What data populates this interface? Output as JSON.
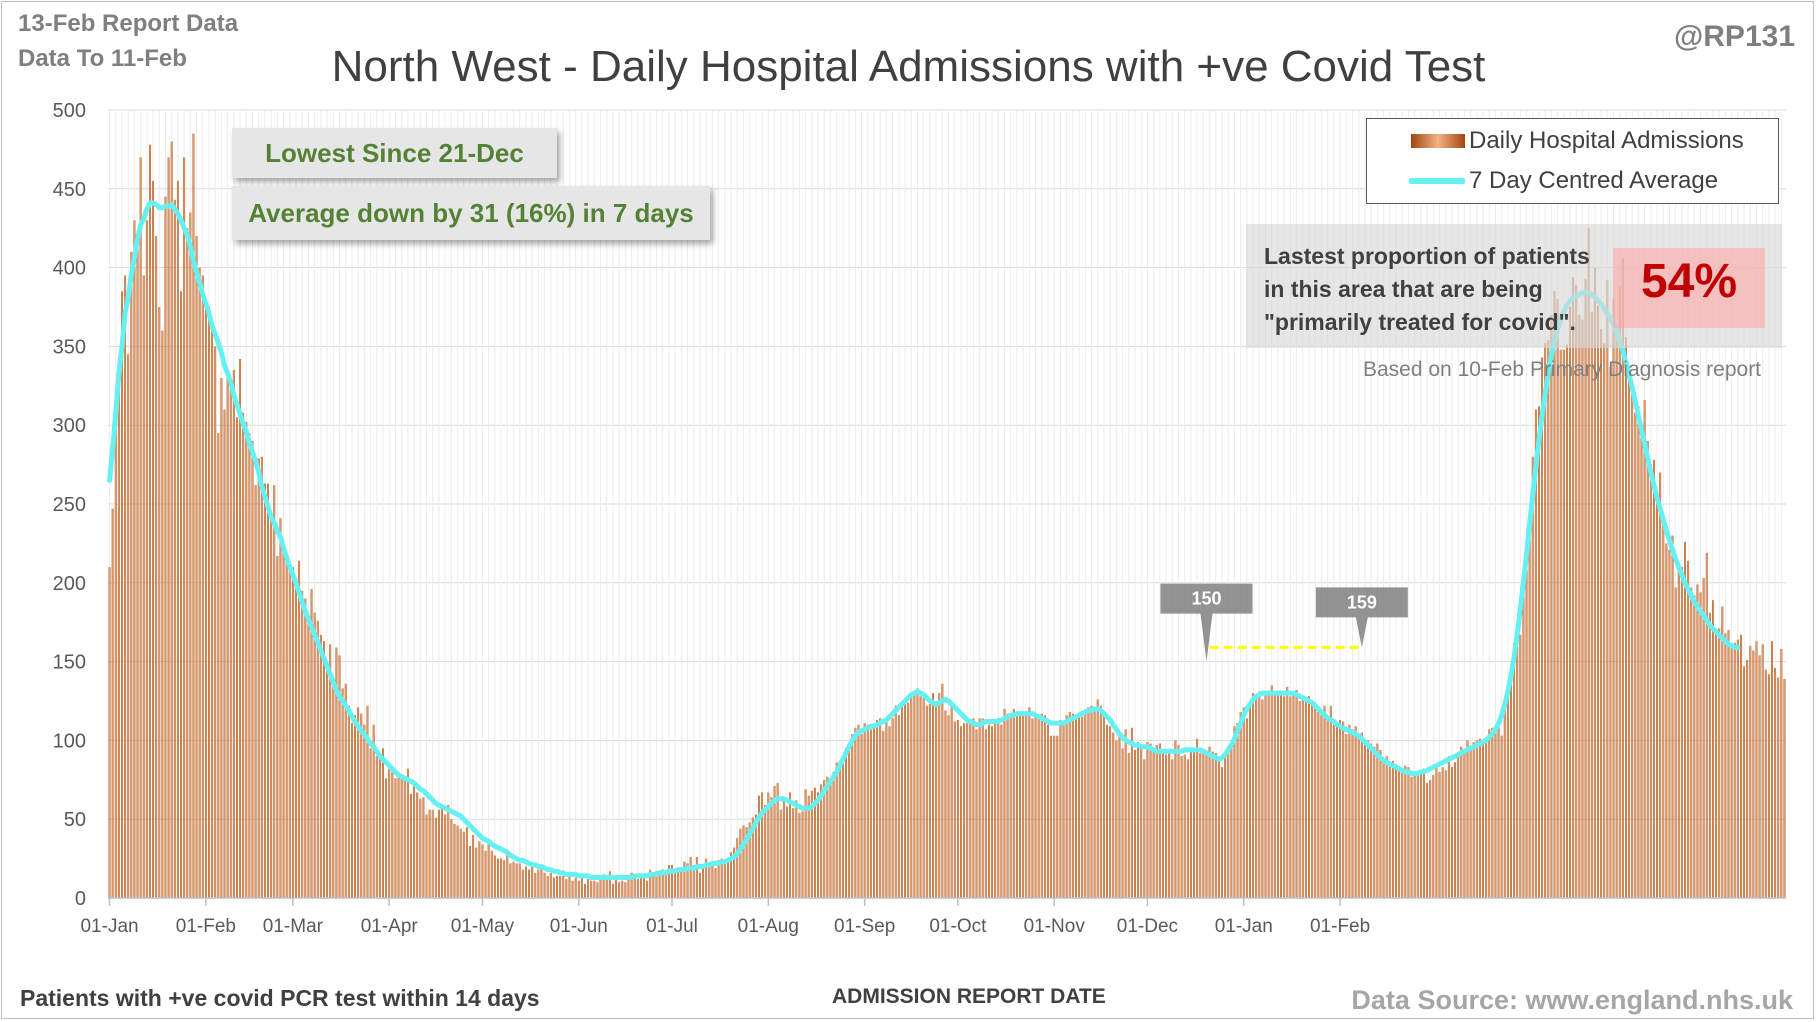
{
  "header": {
    "report_date": "13-Feb Report Data",
    "data_to": "Data To 11-Feb",
    "handle": "@RP131"
  },
  "callouts": {
    "lowest": "Lowest Since 21-Dec",
    "average": "Average down by 31 (16%) in 7 days"
  },
  "proportion": {
    "line1": "Lastest proportion of patients",
    "line2": "in this area that are being",
    "line3": "\"primarily treated for covid\".",
    "value": "54%",
    "note": "Based on 10-Feb Primary Diagnosis report"
  },
  "footer": {
    "note": "Patients with +ve covid PCR test within 14 days",
    "source": "Data Source: www.england.nhs.uk"
  },
  "colors": {
    "bar_dark": "#a0470f",
    "bar_light": "#f4b183",
    "average_line": "#66f0f2",
    "reference_line": "#ffff00",
    "callout_text": "#548235",
    "proportion_value": "#c00000"
  },
  "chart_data": {
    "type": "bar",
    "title": "North West - Daily Hospital Admissions with +ve Covid Test",
    "xlabel": "ADMISSION REPORT DATE",
    "ylabel": "",
    "ylim": [
      0,
      500
    ],
    "yticks": [
      0,
      50,
      100,
      150,
      200,
      250,
      300,
      350,
      400,
      450,
      500
    ],
    "grid": true,
    "legend_position": "top-right",
    "x_start": "01-Jan",
    "x_end": "11-Feb",
    "xtick_labels": [
      "01-Jan",
      "01-Feb",
      "01-Mar",
      "01-Apr",
      "01-May",
      "01-Jun",
      "01-Jul",
      "01-Aug",
      "01-Sep",
      "01-Oct",
      "01-Nov",
      "01-Dec",
      "01-Jan",
      "01-Feb"
    ],
    "series": [
      {
        "name": "Daily Hospital Admissions",
        "kind": "bar",
        "values": [
          210,
          247,
          300,
          325,
          385,
          395,
          345,
          410,
          430,
          420,
          470,
          395,
          430,
          478,
          455,
          420,
          375,
          360,
          445,
          470,
          480,
          443,
          455,
          385,
          470,
          425,
          435,
          485,
          420,
          400,
          395,
          380,
          375,
          360,
          350,
          295,
          330,
          310,
          335,
          325,
          335,
          305,
          342,
          308,
          302,
          295,
          290,
          262,
          279,
          280,
          263,
          263,
          241,
          262,
          217,
          241,
          224,
          218,
          211,
          210,
          203,
          214,
          195,
          190,
          177,
          196,
          181,
          176,
          167,
          163,
          149,
          161,
          135,
          159,
          154,
          133,
          136,
          122,
          111,
          116,
          121,
          117,
          110,
          122,
          95,
          110,
          90,
          90,
          95,
          76,
          82,
          80,
          76,
          79,
          78,
          76,
          82,
          66,
          71,
          67,
          63,
          64,
          53,
          56,
          56,
          51,
          56,
          58,
          53,
          59,
          50,
          47,
          46,
          44,
          42,
          45,
          33,
          40,
          32,
          36,
          34,
          30,
          34,
          30,
          27,
          25,
          25,
          24,
          28,
          22,
          23,
          22,
          22,
          18,
          20,
          18,
          21,
          16,
          18,
          19,
          16,
          14,
          16,
          13,
          14,
          14,
          14,
          12,
          14,
          11,
          13,
          11,
          13,
          9,
          12,
          11,
          11,
          10,
          12,
          15,
          13,
          17,
          9,
          13,
          10,
          11,
          10,
          12,
          16,
          13,
          12,
          15,
          14,
          11,
          18,
          15,
          17,
          17,
          18,
          17,
          21,
          21,
          18,
          17,
          19,
          23,
          22,
          26,
          21,
          26,
          16,
          20,
          25,
          22,
          23,
          19,
          24,
          25,
          23,
          25,
          29,
          32,
          38,
          44,
          46,
          45,
          48,
          51,
          53,
          65,
          67,
          59,
          67,
          64,
          71,
          73,
          56,
          63,
          58,
          67,
          57,
          62,
          54,
          55,
          69,
          65,
          68,
          70,
          67,
          72,
          75,
          77,
          73,
          80,
          86,
          87,
          87,
          95,
          98,
          104,
          108,
          110,
          104,
          111,
          110,
          107,
          109,
          113,
          114,
          106,
          112,
          109,
          114,
          122,
          116,
          124,
          125,
          124,
          129,
          129,
          133,
          128,
          127,
          122,
          123,
          130,
          125,
          130,
          136,
          119,
          116,
          124,
          112,
          113,
          109,
          111,
          111,
          112,
          114,
          107,
          114,
          114,
          107,
          110,
          109,
          113,
          114,
          110,
          120,
          117,
          115,
          120,
          116,
          117,
          116,
          116,
          121,
          114,
          115,
          114,
          117,
          116,
          110,
          103,
          103,
          103,
          113,
          110,
          116,
          118,
          117,
          115,
          115,
          115,
          118,
          121,
          122,
          120,
          126,
          122,
          117,
          110,
          109,
          105,
          100,
          106,
          95,
          107,
          92,
          108,
          94,
          99,
          95,
          88,
          99,
          98,
          93,
          97,
          98,
          94,
          91,
          92,
          88,
          100,
          97,
          90,
          91,
          88,
          93,
          95,
          101,
          92,
          93,
          93,
          96,
          93,
          92,
          89,
          83,
          92,
          94,
          97,
          109,
          111,
          118,
          121,
          114,
          121,
          130,
          128,
          131,
          126,
          130,
          129,
          135,
          131,
          129,
          130,
          128,
          134,
          128,
          130,
          132,
          125,
          127,
          127,
          128,
          124,
          123,
          120,
          118,
          122,
          115,
          122,
          110,
          110,
          113,
          112,
          104,
          110,
          107,
          109,
          103,
          105,
          98,
          100,
          98,
          96,
          98,
          94,
          88,
          90,
          86,
          87,
          85,
          82,
          81,
          84,
          83,
          77,
          79,
          80,
          79,
          82,
          73,
          75,
          78,
          83,
          80,
          83,
          81,
          90,
          83,
          86,
          92,
          96,
          93,
          100,
          94,
          99,
          100,
          101,
          100,
          102,
          107,
          108,
          109,
          109,
          103,
          123,
          130,
          142,
          162,
          160,
          167,
          205,
          226,
          245,
          280,
          310,
          312,
          343,
          352,
          354,
          370,
          385,
          380,
          348,
          348,
          351,
          375,
          394,
          389,
          370,
          367,
          393,
          425,
          372,
          400,
          376,
          361,
          352,
          392,
          337,
          380,
          362,
          388,
          406,
          356,
          337,
          320,
          308,
          312,
          301,
          316,
          290,
          275,
          278,
          255,
          270,
          241,
          225,
          221,
          230,
          197,
          211,
          210,
          226,
          214,
          197,
          192,
          199,
          194,
          203,
          219,
          181,
          189,
          170,
          171,
          185,
          168,
          170,
          160,
          162,
          164,
          167,
          147,
          151,
          160,
          157,
          163,
          154,
          161,
          145,
          142,
          163,
          146,
          140,
          158,
          139
        ]
      },
      {
        "name": "7 Day Centred Average",
        "kind": "line",
        "values": [
          265,
          286,
          308,
          333,
          350,
          371,
          381,
          395,
          406,
          418,
          427,
          431,
          437,
          441,
          441,
          440,
          438,
          438,
          439,
          439,
          440,
          437,
          434,
          430,
          425,
          421,
          414,
          404,
          397,
          390,
          383,
          377,
          371,
          363,
          358,
          352,
          346,
          338,
          333,
          327,
          319,
          313,
          307,
          301,
          296,
          289,
          283,
          277,
          270,
          261,
          255,
          248,
          242,
          238,
          233,
          229,
          222,
          216,
          210,
          205,
          200,
          194,
          188,
          182,
          177,
          172,
          167,
          162,
          157,
          152,
          147,
          142,
          137,
          132,
          128,
          125,
          122,
          119,
          115,
          112,
          109,
          106,
          104,
          101,
          98,
          96,
          93,
          90,
          88,
          86,
          84,
          82,
          80,
          78,
          77,
          76,
          75,
          74,
          73,
          71,
          69,
          68,
          66,
          64,
          62,
          60,
          59,
          58,
          57,
          56,
          55,
          54,
          53,
          52,
          50,
          48,
          46,
          44,
          42,
          40,
          38,
          37,
          36,
          34,
          33,
          32,
          31,
          30,
          29,
          27,
          26,
          25,
          24,
          24,
          23,
          22,
          21,
          21,
          20,
          20,
          19,
          18,
          18,
          17,
          17,
          16,
          16,
          15,
          15,
          15,
          15,
          14,
          14,
          14,
          14,
          13,
          13,
          13,
          13,
          13,
          13,
          13,
          13,
          13,
          13,
          13,
          13,
          13,
          13,
          14,
          14,
          14,
          14,
          14,
          15,
          15,
          15,
          16,
          16,
          16,
          17,
          17,
          17,
          18,
          18,
          18,
          19,
          19,
          19,
          20,
          20,
          20,
          21,
          21,
          22,
          22,
          22,
          23,
          23,
          24,
          25,
          26,
          28,
          31,
          34,
          37,
          41,
          44,
          48,
          51,
          54,
          56,
          58,
          60,
          62,
          63,
          63,
          63,
          62,
          61,
          60,
          59,
          58,
          57,
          57,
          57,
          58,
          60,
          62,
          65,
          68,
          71,
          74,
          77,
          80,
          84,
          88,
          92,
          96,
          100,
          103,
          105,
          106,
          107,
          108,
          109,
          109,
          110,
          111,
          112,
          113,
          115,
          117,
          119,
          121,
          123,
          125,
          127,
          129,
          130,
          131,
          130,
          129,
          127,
          125,
          124,
          123,
          124,
          125,
          126,
          125,
          123,
          121,
          119,
          117,
          115,
          113,
          112,
          111,
          110,
          110,
          111,
          112,
          112,
          112,
          112,
          112,
          113,
          114,
          115,
          116,
          116,
          117,
          117,
          117,
          117,
          117,
          117,
          116,
          115,
          114,
          113,
          112,
          111,
          111,
          111,
          111,
          111,
          112,
          113,
          114,
          115,
          116,
          117,
          118,
          119,
          119,
          120,
          120,
          119,
          117,
          115,
          113,
          110,
          107,
          104,
          102,
          100,
          99,
          98,
          97,
          97,
          96,
          96,
          96,
          95,
          94,
          93,
          93,
          93,
          93,
          93,
          93,
          93,
          93,
          93,
          94,
          94,
          94,
          94,
          94,
          94,
          93,
          92,
          91,
          90,
          89,
          88,
          89,
          91,
          94,
          97,
          101,
          106,
          111,
          116,
          120,
          123,
          126,
          128,
          129,
          130,
          130,
          130,
          130,
          130,
          130,
          130,
          130,
          130,
          130,
          130,
          129,
          128,
          127,
          126,
          125,
          124,
          122,
          120,
          118,
          116,
          114,
          113,
          112,
          110,
          109,
          108,
          107,
          106,
          105,
          104,
          103,
          101,
          99,
          97,
          95,
          93,
          91,
          89,
          87,
          86,
          85,
          84,
          83,
          82,
          81,
          80,
          80,
          79,
          79,
          79,
          80,
          80,
          81,
          82,
          83,
          84,
          85,
          86,
          87,
          88,
          89,
          90,
          91,
          92,
          93,
          94,
          95,
          96,
          97,
          98,
          99,
          100,
          102,
          104,
          107,
          111,
          116,
          123,
          131,
          141,
          153,
          167,
          183,
          200,
          218,
          237,
          256,
          274,
          291,
          306,
          320,
          333,
          344,
          353,
          361,
          367,
          372,
          376,
          379,
          381,
          382,
          383,
          384,
          384,
          384,
          383,
          381,
          379,
          377,
          374,
          371,
          368,
          364,
          359,
          353,
          347,
          340,
          332,
          324,
          315,
          306,
          297,
          288,
          279,
          270,
          262,
          254,
          247,
          240,
          233,
          227,
          221,
          215,
          210,
          205,
          200,
          196,
          192,
          188,
          185,
          182,
          179,
          176,
          173,
          171,
          169,
          167,
          165,
          163,
          161,
          160,
          159,
          159
        ]
      }
    ],
    "annotations": [
      {
        "label": "150",
        "x": "21-Dec",
        "y": 150
      },
      {
        "label": "159",
        "x": "08-Feb",
        "y": 159
      }
    ],
    "reference_line": {
      "from": "21-Dec",
      "to": "08-Feb",
      "y": 159
    }
  }
}
